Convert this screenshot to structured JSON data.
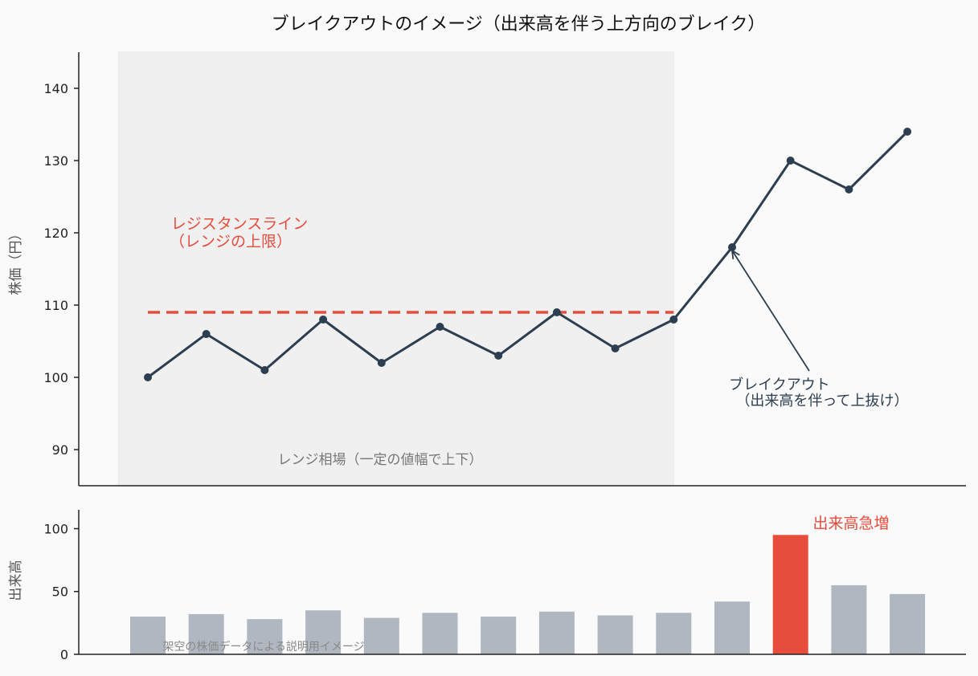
{
  "chart_data": [
    {
      "type": "line",
      "title": "ブレイクアウトのイメージ（出来高を伴う上方向のブレイク）",
      "ylabel": "株価（円）",
      "ylim": [
        85,
        145
      ],
      "yticks": [
        90,
        100,
        110,
        120,
        130,
        140
      ],
      "x": [
        1,
        2,
        3,
        4,
        5,
        6,
        7,
        8,
        9,
        10,
        11,
        12,
        13,
        14
      ],
      "series": [
        {
          "values": [
            100,
            106,
            101,
            108,
            102,
            107,
            103,
            109,
            104,
            108,
            118,
            130,
            126,
            134
          ]
        }
      ],
      "resistance": {
        "value": 109,
        "from_x": 1,
        "to_x": 10
      },
      "range_region": {
        "from_x": 0.5,
        "to_x": 10,
        "label": "レンジ相場（一定の値幅で上下）"
      },
      "annotations": [
        {
          "lines": [
            "レジスタンスライン",
            "（レンジの上限）"
          ]
        },
        {
          "lines": [
            "ブレイクアウト",
            "（出来高を伴って上抜け）"
          ],
          "target_x": 11,
          "target_y": 118
        }
      ],
      "colors": {
        "line": "#2c3e50",
        "resistance": "#e74c3c",
        "region": "#f0f0f0"
      },
      "grid": false
    },
    {
      "type": "bar",
      "ylabel": "出来高",
      "ylim": [
        0,
        115
      ],
      "yticks": [
        0,
        50,
        100
      ],
      "x": [
        1,
        2,
        3,
        4,
        5,
        6,
        7,
        8,
        9,
        10,
        11,
        12,
        13,
        14
      ],
      "values": [
        30,
        32,
        28,
        35,
        29,
        33,
        30,
        34,
        31,
        33,
        42,
        95,
        55,
        48
      ],
      "highlight_index": 11,
      "annotations": [
        {
          "text": "出来高急増"
        }
      ],
      "footnote": "架空の株価データによる説明用イメージ",
      "colors": {
        "bar": "#b0b7c0",
        "highlight": "#e74c3c"
      },
      "grid": false
    }
  ]
}
